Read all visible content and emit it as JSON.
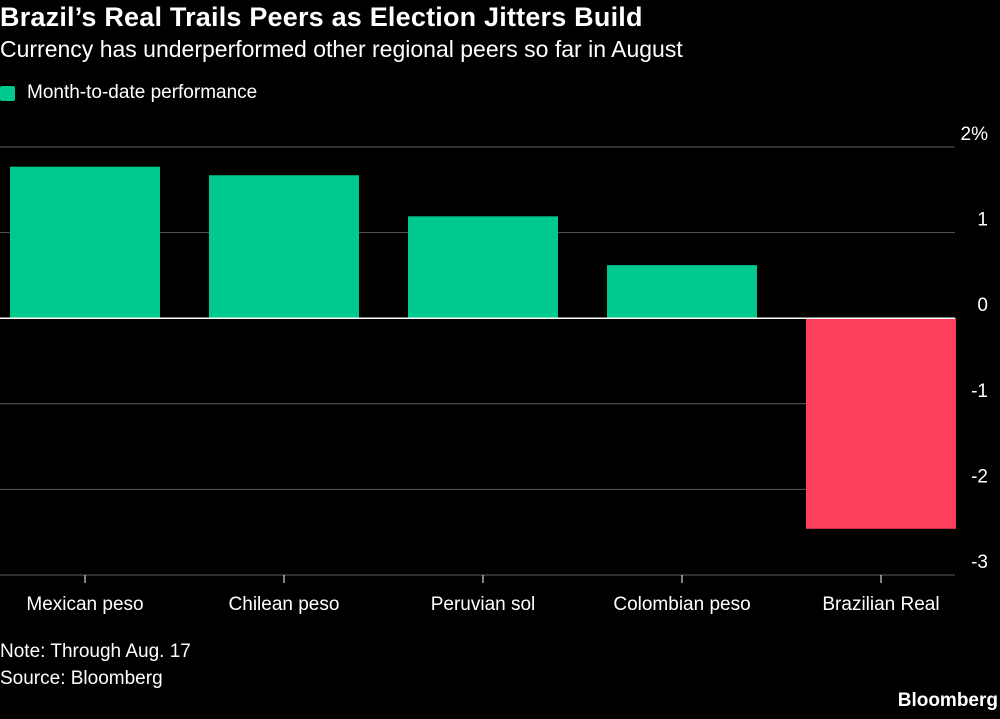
{
  "header": {
    "title": "Brazil’s Real Trails Peers as Election Jitters Build",
    "subtitle": "Currency has underperformed other regional peers so far in August"
  },
  "legend": {
    "label": "Month-to-date performance",
    "color": "#00c98d"
  },
  "colors": {
    "positive": "#00c98d",
    "negative": "#ff3f5e",
    "grid": "#5a5a5a",
    "zero_line": "#ffffff",
    "text": "#ffffff"
  },
  "chart_data": {
    "type": "bar",
    "categories": [
      "Mexican peso",
      "Chilean peso",
      "Peruvian sol",
      "Colombian peso",
      "Brazilian Real"
    ],
    "series": [
      {
        "name": "Month-to-date performance",
        "values": [
          1.77,
          1.67,
          1.19,
          0.62,
          -2.46
        ]
      }
    ],
    "ylim": [
      -3,
      2
    ],
    "yticks": [
      2,
      1,
      0,
      -1,
      -2,
      -3
    ],
    "ytick_labels": [
      "2%",
      "1",
      "0",
      "-1",
      "-2",
      "-3"
    ],
    "grid": true,
    "legend_position": "top-left"
  },
  "footer": {
    "note": "Note: Through Aug. 17",
    "source": "Source: Bloomberg",
    "brand": "Bloomberg"
  }
}
